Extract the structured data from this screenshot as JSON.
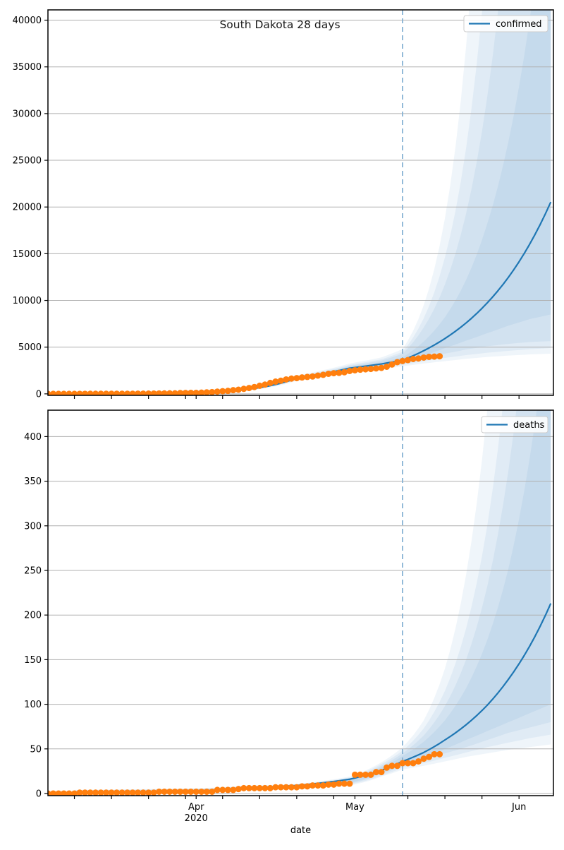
{
  "figure": {
    "title": "South Dakota 28 days",
    "xlabel": "date",
    "year_label": "2020",
    "background": "#ffffff"
  },
  "colors": {
    "median_line": "#1f77b4",
    "band_fill": "#1f77b4",
    "band_alpha": 0.07,
    "observed_dot": "#ff7f0e",
    "forecast_vline": "#87b2d4",
    "gridline": "#b0b0b0",
    "spine": "#000000",
    "legend_border": "#cccccc",
    "legend_bg": "#ffffff"
  },
  "x_axis": {
    "note": "day units are days since 2020-03-03",
    "xlim": [
      1,
      96.5
    ],
    "minor_tick_days": [
      6,
      13,
      20,
      27,
      34,
      41,
      48,
      55,
      62,
      69,
      76,
      83
    ],
    "major_ticks": [
      {
        "day": 29,
        "label": "Apr",
        "sublabel": "2020"
      },
      {
        "day": 59,
        "label": "May",
        "sublabel": ""
      },
      {
        "day": 90,
        "label": "Jun",
        "sublabel": ""
      }
    ],
    "forecast_start_day": 68,
    "forecast_horizon_days": 28
  },
  "chart_data": [
    {
      "type": "line",
      "name": "confirmed",
      "legend": "confirmed",
      "ylim": [
        -160,
        41100
      ],
      "yticks": [
        0,
        5000,
        10000,
        15000,
        20000,
        25000,
        30000,
        35000,
        40000
      ],
      "grid": true,
      "observed": {
        "start_day": 1,
        "values": [
          0,
          0,
          0,
          0,
          0,
          0,
          5,
          5,
          8,
          8,
          9,
          9,
          10,
          11,
          11,
          14,
          14,
          21,
          21,
          28,
          30,
          41,
          46,
          58,
          58,
          90,
          98,
          108,
          108,
          129,
          165,
          187,
          240,
          288,
          320,
          393,
          447,
          536,
          626,
          730,
          868,
          988,
          1168,
          1311,
          1411,
          1542,
          1635,
          1685,
          1755,
          1813,
          1858,
          1956,
          2040,
          2147,
          2212,
          2245,
          2313,
          2449,
          2525,
          2588,
          2631,
          2668,
          2721,
          2779,
          2905,
          3145,
          3393,
          3517,
          3614,
          3732,
          3792,
          3887,
          3959,
          3987,
          4027
        ]
      },
      "median": {
        "days": [
          6,
          20,
          30,
          38,
          48,
          58,
          64,
          68,
          72,
          76,
          80,
          84,
          88,
          92,
          96
        ],
        "values": [
          1,
          25,
          120,
          450,
          1690,
          2750,
          3200,
          3600,
          4620,
          5920,
          7590,
          9740,
          12480,
          16010,
          20530
        ]
      },
      "bands": [
        {
          "days": [
            6,
            20,
            30,
            38,
            48,
            58,
            64,
            68,
            72,
            76,
            80,
            84,
            88,
            92,
            96
          ],
          "lo": [
            0,
            5,
            60,
            340,
            1400,
            2300,
            2650,
            2950,
            3250,
            3500,
            3750,
            3950,
            4100,
            4220,
            4300
          ],
          "hi": [
            60,
            120,
            260,
            600,
            1980,
            3250,
            3900,
            4800,
            9500,
            18800,
            37200,
            73600,
            150000,
            250000,
            400000
          ]
        },
        {
          "days": [
            6,
            20,
            30,
            38,
            48,
            58,
            64,
            68,
            72,
            76,
            80,
            84,
            88,
            92,
            96
          ],
          "lo": [
            0,
            8,
            70,
            410,
            1520,
            2460,
            2820,
            3100,
            3500,
            3850,
            4150,
            4400,
            4600,
            4780,
            4900
          ],
          "hi": [
            40,
            85,
            200,
            490,
            1900,
            3100,
            3700,
            4500,
            8100,
            14600,
            26300,
            47300,
            85000,
            153000,
            260000
          ]
        },
        {
          "days": [
            6,
            20,
            30,
            38,
            48,
            58,
            64,
            68,
            72,
            76,
            80,
            84,
            88,
            92,
            96
          ],
          "lo": [
            0.5,
            10,
            80,
            420,
            1570,
            2540,
            2930,
            3250,
            3780,
            4300,
            4750,
            5100,
            5350,
            5550,
            5650
          ],
          "hi": [
            20,
            60,
            160,
            480,
            1840,
            3000,
            3560,
            4300,
            7100,
            11700,
            19300,
            31800,
            52400,
            86000,
            142000
          ]
        },
        {
          "days": [
            6,
            20,
            30,
            38,
            48,
            58,
            64,
            68,
            72,
            76,
            80,
            84,
            88,
            92,
            96
          ],
          "lo": [
            1,
            15,
            90,
            430,
            1620,
            2620,
            3040,
            3400,
            4100,
            4900,
            5700,
            6500,
            7300,
            8000,
            8500
          ],
          "hi": [
            10,
            40,
            130,
            470,
            1780,
            2900,
            3400,
            3900,
            5600,
            8200,
            12200,
            18200,
            27000,
            40000,
            59000
          ]
        }
      ]
    },
    {
      "type": "line",
      "name": "deaths",
      "legend": "deaths",
      "ylim": [
        -2.4,
        429.6
      ],
      "yticks": [
        0,
        50,
        100,
        150,
        200,
        250,
        300,
        350,
        400
      ],
      "grid": true,
      "observed": {
        "start_day": 1,
        "values": [
          0,
          0,
          0,
          0,
          0,
          0,
          1,
          1,
          1,
          1,
          1,
          1,
          1,
          1,
          1,
          1,
          1,
          1,
          1,
          1,
          1,
          2,
          2,
          2,
          2,
          2,
          2,
          2,
          2,
          2,
          2,
          2,
          4,
          4,
          4,
          4,
          5,
          6,
          6,
          6,
          6,
          6,
          6,
          7,
          7,
          7,
          7,
          7,
          8,
          8,
          9,
          9,
          9,
          10,
          10,
          11,
          11,
          11,
          21,
          21,
          21,
          21,
          24,
          24,
          29,
          31,
          31,
          34,
          34,
          34,
          36,
          39,
          41,
          44,
          44
        ]
      },
      "median": {
        "days": [
          6,
          20,
          30,
          38,
          48,
          58,
          64,
          68,
          72,
          76,
          80,
          84,
          88,
          92,
          96
        ],
        "values": [
          1,
          1.5,
          2.2,
          6,
          9,
          16,
          26,
          36,
          46,
          60,
          77,
          99,
          128,
          165,
          213
        ]
      },
      "bands": [
        {
          "days": [
            6,
            20,
            30,
            38,
            48,
            58,
            64,
            68,
            72,
            76,
            80,
            84,
            88,
            92,
            96
          ],
          "lo": [
            0,
            0,
            0.8,
            3.5,
            5.5,
            9,
            19,
            27,
            31,
            36,
            41,
            45,
            49,
            52,
            55
          ],
          "hi": [
            4,
            5,
            6,
            8.5,
            10.5,
            19,
            35,
            52,
            82,
            140,
            245,
            430,
            770,
            1400,
            2500
          ]
        },
        {
          "days": [
            6,
            20,
            30,
            38,
            48,
            58,
            64,
            68,
            72,
            76,
            80,
            84,
            88,
            92,
            96
          ],
          "lo": [
            0,
            0.5,
            1,
            4,
            6,
            10,
            20,
            29,
            34,
            40,
            46,
            52,
            57,
            62,
            66
          ],
          "hi": [
            3.5,
            4.5,
            5.5,
            8,
            10,
            18,
            33,
            48,
            73,
            115,
            185,
            300,
            495,
            830,
            1400
          ]
        },
        {
          "days": [
            6,
            20,
            30,
            38,
            48,
            58,
            64,
            68,
            72,
            76,
            80,
            84,
            88,
            92,
            96
          ],
          "lo": [
            0.2,
            0.8,
            1.2,
            4.5,
            6.5,
            11,
            22,
            31,
            38,
            45,
            52,
            60,
            68,
            74,
            80
          ],
          "hi": [
            3,
            4,
            5,
            7.5,
            9.5,
            17,
            31,
            45,
            65,
            98,
            150,
            232,
            362,
            570,
            900
          ]
        },
        {
          "days": [
            6,
            20,
            30,
            38,
            48,
            58,
            64,
            68,
            72,
            76,
            80,
            84,
            88,
            92,
            96
          ],
          "lo": [
            0.5,
            1,
            1.5,
            5,
            7,
            12,
            23,
            33,
            41,
            50,
            60,
            70,
            80,
            90,
            100
          ],
          "hi": [
            2.5,
            3.5,
            4.5,
            7,
            9,
            16,
            29,
            42,
            58,
            82,
            118,
            172,
            252,
            375,
            560
          ]
        }
      ]
    }
  ]
}
